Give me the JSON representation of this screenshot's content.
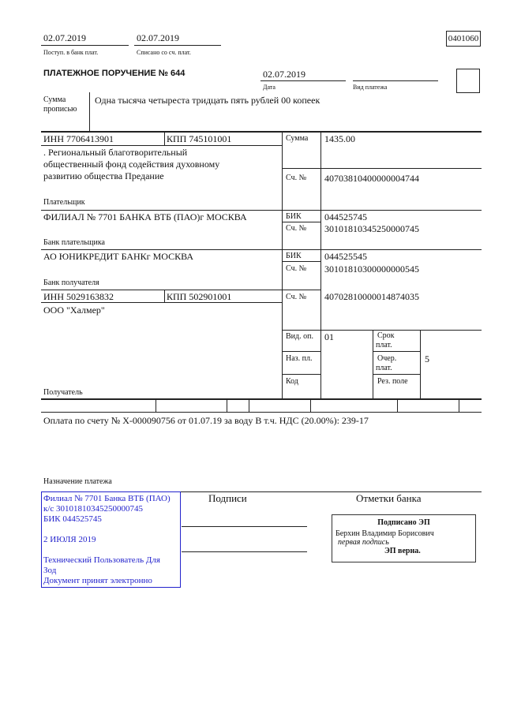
{
  "header": {
    "received_date": "02.07.2019",
    "received_label": "Поступ. в банк плат.",
    "debited_date": "02.07.2019",
    "debited_label": "Списано со сч. плат.",
    "form_code": "0401060",
    "title": "ПЛАТЕЖНОЕ ПОРУЧЕНИЕ № 644",
    "date": "02.07.2019",
    "date_label": "Дата",
    "payment_type_value": "",
    "payment_type_label": "Вид платежа"
  },
  "amount_words": {
    "label_1": "Сумма",
    "label_2": "прописью",
    "value": "Одна тысяча четыреста тридцать пять рублей 00 копеек"
  },
  "payer": {
    "inn": "ИНН 7706413901",
    "kpp": "КПП 745101001",
    "name_lines": [
      ". Региональный благотворительный",
      "общественный фонд содействия духовному",
      "развитию общества Предание"
    ],
    "label": "Плательщик",
    "sum_label": "Сумма",
    "sum": "1435.00",
    "account_label": "Сч. №",
    "account": "40703810400000004744"
  },
  "payer_bank": {
    "name": "ФИЛИАЛ № 7701 БАНКА ВТБ (ПАО)г МОСКВА",
    "label": "Банк плательщика",
    "bik_label": "БИК",
    "bik": "044525745",
    "account_label": "Сч. №",
    "account": "30101810345250000745"
  },
  "payee_bank": {
    "name": "АО ЮНИКРЕДИТ БАНКг МОСКВА",
    "label": "Банк получателя",
    "bik_label": "БИК",
    "bik": "044525545",
    "account_label": "Сч. №",
    "account": "30101810300000000545"
  },
  "payee": {
    "inn": "ИНН 5029163832",
    "kpp": "КПП 502901001",
    "name": "ООО \"Халмер\"",
    "label": "Получатель",
    "account_label": "Сч. №",
    "account": "40702810000014874035"
  },
  "codes": {
    "op_type_label": "Вид. оп.",
    "op_type": "01",
    "purpose_code_label": "Наз. пл.",
    "code_label": "Код",
    "term_label_1": "Срок",
    "term_label_2": "плат.",
    "order_label_1": "Очер.",
    "order_label_2": "плат.",
    "order": "5",
    "reserve_label": "Рез. поле"
  },
  "purpose": {
    "text": "Оплата по счету № Х-000090756 от 01.07.19 за воду В т.ч. НДС (20.00%): 239-17",
    "label": "Назначение платежа"
  },
  "stamp": {
    "lines": [
      "Филиал № 7701 Банка ВТБ (ПАО)",
      "к/с 30101810345250000745",
      "БИК 044525745",
      "",
      "2 ИЮЛЯ 2019",
      "",
      "Технический Пользователь Для",
      "Зод",
      "Документ принят электронно"
    ],
    "color": "#2222cc"
  },
  "signatures_label": "Подписи",
  "bank_marks": {
    "label": "Отметки банка",
    "signed": "Подписано ЭП",
    "signer": "Берхин Владимир Борисович",
    "role": "первая подпись",
    "valid": "ЭП верна."
  }
}
